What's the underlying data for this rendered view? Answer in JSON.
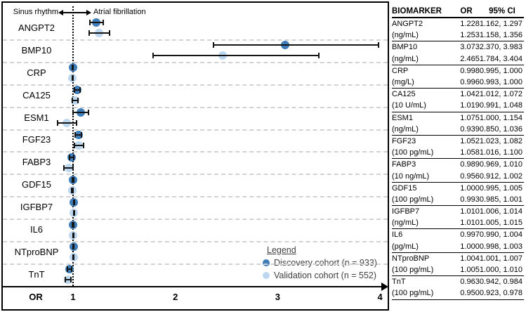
{
  "colors": {
    "discovery": "#3e7db8",
    "validation": "#bdd7ee",
    "error_bar": "#141414",
    "separator": "#d2d2d2",
    "axis": "#000000"
  },
  "chart_data": {
    "type": "scatter",
    "variant": "forest-plot",
    "title": "",
    "x_axis": {
      "label": "OR",
      "ticks": [
        1,
        2,
        3,
        4
      ],
      "range_shown": [
        0.33,
        4.08
      ],
      "grid": "horizontal-dashed",
      "reference_line_at": 1
    },
    "direction_labels": {
      "left": "Sinus rhythm",
      "right": "Atrial fibrillation"
    },
    "legend": {
      "title": "Legend",
      "position": "inside-bottom-right"
    },
    "series": [
      {
        "key": "discovery",
        "name": "Discovery cohort (n = 933)",
        "color": "#3e7db8"
      },
      {
        "key": "validation",
        "name": "Validation cohort (n = 552)",
        "color": "#bdd7ee"
      }
    ],
    "rows": [
      {
        "biomarker": "ANGPT2",
        "unit": "(ng/mL)",
        "discovery": {
          "or": 1.228,
          "ci": [
            1.162,
            1.297
          ]
        },
        "validation": {
          "or": 1.253,
          "ci": [
            1.158,
            1.356
          ]
        }
      },
      {
        "biomarker": "BMP10",
        "unit": "(ng/mL)",
        "discovery": {
          "or": 3.073,
          "ci": [
            2.37,
            3.983
          ]
        },
        "validation": {
          "or": 2.465,
          "ci": [
            1.784,
            3.404
          ]
        }
      },
      {
        "biomarker": "CRP",
        "unit": "(mg/L)",
        "discovery": {
          "or": 0.998,
          "ci": [
            0.995,
            1.0
          ]
        },
        "validation": {
          "or": 0.996,
          "ci": [
            0.993,
            1.0
          ]
        }
      },
      {
        "biomarker": "CA125",
        "unit": "(10 U/mL)",
        "discovery": {
          "or": 1.042,
          "ci": [
            1.012,
            1.072
          ]
        },
        "validation": {
          "or": 1.019,
          "ci": [
            0.991,
            1.048
          ]
        }
      },
      {
        "biomarker": "ESM1",
        "unit": "(ng/mL)",
        "discovery": {
          "or": 1.075,
          "ci": [
            1.0,
            1.154
          ]
        },
        "validation": {
          "or": 0.939,
          "ci": [
            0.85,
            1.036
          ]
        }
      },
      {
        "biomarker": "FGF23",
        "unit": "(100 pg/mL)",
        "discovery": {
          "or": 1.052,
          "ci": [
            1.023,
            1.082
          ]
        },
        "validation": {
          "or": 1.058,
          "ci": [
            1.016,
            1.1
          ]
        }
      },
      {
        "biomarker": "FABP3",
        "unit": "(10 ng/mL)",
        "discovery": {
          "or": 0.989,
          "ci": [
            0.969,
            1.01
          ]
        },
        "validation": {
          "or": 0.956,
          "ci": [
            0.912,
            1.002
          ]
        }
      },
      {
        "biomarker": "GDF15",
        "unit": "(100 pg/mL)",
        "discovery": {
          "or": 1.0,
          "ci": [
            0.995,
            1.005
          ]
        },
        "validation": {
          "or": 0.993,
          "ci": [
            0.985,
            1.001
          ]
        }
      },
      {
        "biomarker": "IGFBP7",
        "unit": "(ng/mL)",
        "discovery": {
          "or": 1.01,
          "ci": [
            1.006,
            1.014
          ]
        },
        "validation": {
          "or": 1.01,
          "ci": [
            1.005,
            1.015
          ]
        }
      },
      {
        "biomarker": "IL6",
        "unit": "(pg/mL)",
        "discovery": {
          "or": 0.997,
          "ci": [
            0.99,
            1.004
          ]
        },
        "validation": {
          "or": 1.0,
          "ci": [
            0.998,
            1.003
          ]
        }
      },
      {
        "biomarker": "NTproBNP",
        "unit": "(100 pg/mL)",
        "discovery": {
          "or": 1.004,
          "ci": [
            1.001,
            1.007
          ]
        },
        "validation": {
          "or": 1.005,
          "ci": [
            1.0,
            1.01
          ]
        }
      },
      {
        "biomarker": "TnT",
        "unit": "(100 pg/mL)",
        "discovery": {
          "or": 0.963,
          "ci": [
            0.942,
            0.984
          ]
        },
        "validation": {
          "or": 0.95,
          "ci": [
            0.923,
            0.978
          ]
        }
      }
    ]
  },
  "table": {
    "headers": [
      "BIOMARKER",
      "OR",
      "95% CI"
    ],
    "rows": [
      [
        "ANGPT2",
        "1.228",
        "1.162, 1.297"
      ],
      [
        "(ng/mL)",
        "1.253",
        "1.158, 1.356"
      ],
      [
        "BMP10",
        "3.073",
        "2.370, 3.983"
      ],
      [
        "(ng/mL)",
        "2.465",
        "1.784, 3.404"
      ],
      [
        "CRP",
        "0.998",
        "0.995, 1.000"
      ],
      [
        "(mg/L)",
        "0.996",
        "0.993, 1.000"
      ],
      [
        "CA125",
        "1.042",
        "1.012, 1.072"
      ],
      [
        "(10 U/mL)",
        "1.019",
        "0.991, 1.048"
      ],
      [
        "ESM1",
        "1.075",
        "1.000, 1.154"
      ],
      [
        "(ng/mL)",
        "0.939",
        "0.850, 1.036"
      ],
      [
        "FGF23",
        "1.052",
        "1.023, 1.082"
      ],
      [
        "(100 pg/mL)",
        "1.058",
        "1.016, 1.100"
      ],
      [
        "FABP3",
        "0.989",
        "0.969, 1.010"
      ],
      [
        "(10 ng/mL)",
        "0.956",
        "0.912, 1.002"
      ],
      [
        "GDF15",
        "1.000",
        "0.995, 1.005"
      ],
      [
        "(100 pg/mL)",
        "0.993",
        "0.985, 1.001"
      ],
      [
        "IGFBP7",
        "1.010",
        "1.006, 1.014"
      ],
      [
        "(ng/mL)",
        "1.010",
        "1.005, 1.015"
      ],
      [
        "IL6",
        "0.997",
        "0.990, 1.004"
      ],
      [
        "(pg/mL)",
        "1.000",
        "0.998, 1.003"
      ],
      [
        "NTproBNP",
        "1.004",
        "1.001, 1.007"
      ],
      [
        "(100 pg/mL)",
        "1.005",
        "1.000, 1.010"
      ],
      [
        "TnT",
        "0.963",
        "0.942, 0.984"
      ],
      [
        "(100 pg/mL)",
        "0.950",
        "0.923, 0.978"
      ]
    ]
  }
}
